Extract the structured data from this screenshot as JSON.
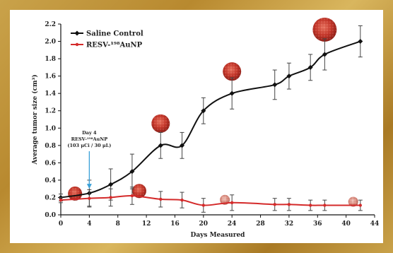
{
  "chart_data": {
    "type": "line",
    "title": "",
    "xlabel": "Days Measured",
    "ylabel": "Average tumor size (cm³)",
    "xlim": [
      0,
      44
    ],
    "ylim": [
      0,
      2.2
    ],
    "x_ticks": [
      0,
      4,
      8,
      12,
      16,
      20,
      24,
      28,
      32,
      36,
      40,
      44
    ],
    "y_ticks": [
      0.0,
      0.2,
      0.4,
      0.6,
      0.8,
      1.0,
      1.2,
      1.4,
      1.6,
      1.8,
      2.0,
      2.2
    ],
    "x_tick_labels": [
      "0",
      "4",
      "8",
      "12",
      "16",
      "20",
      "24",
      "28",
      "32",
      "36",
      "40",
      "44"
    ],
    "y_tick_labels": [
      "0.0",
      "0.2",
      "0.4",
      "0.6",
      "0.8",
      "1.0",
      "1.2",
      "1.4",
      "1.6",
      "1.8",
      "2.0",
      "2.2"
    ],
    "grid": false,
    "legend_position": "top-left",
    "series": [
      {
        "name": "Saline Control",
        "color": "#111111",
        "marker": "diamond",
        "x": [
          0,
          4,
          7,
          10,
          14,
          17,
          20,
          24,
          30,
          32,
          35,
          37,
          42
        ],
        "y": [
          0.2,
          0.25,
          0.35,
          0.5,
          0.8,
          0.8,
          1.2,
          1.4,
          1.5,
          1.6,
          1.7,
          1.85,
          2.0
        ],
        "err": [
          0.04,
          0.15,
          0.18,
          0.2,
          0.15,
          0.15,
          0.15,
          0.18,
          0.17,
          0.15,
          0.15,
          0.18,
          0.18
        ]
      },
      {
        "name": "RESV-¹⁹⁸AuNP",
        "color": "#d42a2a",
        "marker": "circle",
        "x": [
          0,
          4,
          7,
          10,
          14,
          17,
          20,
          24,
          30,
          32,
          35,
          37,
          42
        ],
        "y": [
          0.17,
          0.19,
          0.2,
          0.22,
          0.18,
          0.17,
          0.11,
          0.14,
          0.12,
          0.12,
          0.11,
          0.11,
          0.11
        ],
        "err": [
          0.03,
          0.1,
          0.1,
          0.1,
          0.09,
          0.09,
          0.08,
          0.09,
          0.07,
          0.07,
          0.06,
          0.06,
          0.06
        ]
      }
    ],
    "annotations": [
      {
        "lines": [
          "Day 4",
          "RESV-¹⁹⁸AuNP",
          "(103 μCi / 30 μL)"
        ],
        "x": 4
      }
    ],
    "tumor_images": [
      {
        "series": "Saline Control",
        "x": 14,
        "size": "medium"
      },
      {
        "series": "Saline Control",
        "x": 24,
        "size": "medium"
      },
      {
        "series": "Saline Control",
        "x": 37,
        "size": "large"
      },
      {
        "series": "RESV-¹⁹⁸AuNP",
        "x": 2,
        "size": "small"
      },
      {
        "series": "RESV-¹⁹⁸AuNP",
        "x": 11,
        "size": "small"
      },
      {
        "series": "RESV-¹⁹⁸AuNP",
        "x": 23,
        "size": "tiny"
      },
      {
        "series": "RESV-¹⁹⁸AuNP",
        "x": 41,
        "size": "tiny"
      }
    ]
  }
}
